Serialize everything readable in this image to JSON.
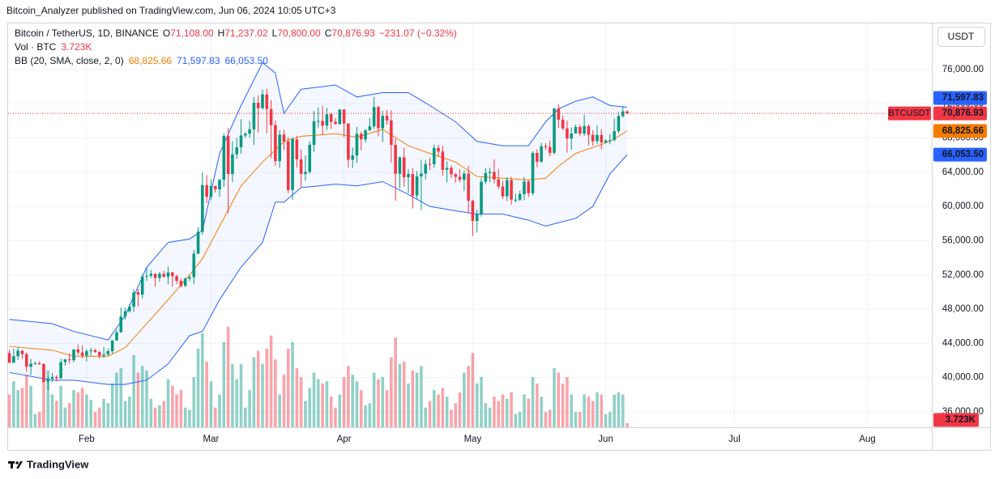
{
  "header": {
    "published": "Bitcoin_Analyzer published on TradingView.com, Jun 06, 2024 10:05 UTC+3"
  },
  "footer": {
    "brand": "TradingView"
  },
  "chart_data": {
    "type": "candlestick",
    "title": "Bitcoin / TetherUS, 1D, BINANCE",
    "ohlc_legend": [
      {
        "label": "O",
        "value": "71,108.00"
      },
      {
        "label": "H",
        "value": "71,237.02"
      },
      {
        "label": "L",
        "value": "70,800.00"
      },
      {
        "label": "C",
        "value": "70,876.93"
      }
    ],
    "change": "−231.07 (−0.32%)",
    "currency": "USDT",
    "symbol": "BTCUSDT",
    "last_price_label": "70,876.93",
    "up_color": "#089981",
    "down_color": "#f23645",
    "grid": true,
    "ylim": [
      34200,
      81480
    ],
    "yticks": [
      {
        "value": 36000,
        "label": "36,000.00"
      },
      {
        "value": 40000,
        "label": "40,000.00"
      },
      {
        "value": 44000,
        "label": "44,000.00"
      },
      {
        "value": 48000,
        "label": "48,000.00"
      },
      {
        "value": 52000,
        "label": "52,000.00"
      },
      {
        "value": 56000,
        "label": "56,000.00"
      },
      {
        "value": 60000,
        "label": "60,000.00"
      },
      {
        "value": 64000,
        "label": "64,000.00"
      },
      {
        "value": 68000,
        "label": "68,000.00"
      },
      {
        "value": 72000,
        "label": "72,000.00"
      },
      {
        "value": 76000,
        "label": "76,000.00"
      }
    ],
    "xlim": [
      -0.3,
      215
    ],
    "xticks": [
      {
        "value": 18,
        "label": "Feb"
      },
      {
        "value": 47,
        "label": "Mar"
      },
      {
        "value": 78,
        "label": "Apr"
      },
      {
        "value": 108,
        "label": "May"
      },
      {
        "value": 139,
        "label": "Jun"
      },
      {
        "value": 169,
        "label": "Jul"
      },
      {
        "value": 200,
        "label": "Aug"
      }
    ],
    "ohlc": [
      [
        42850,
        43250,
        41720,
        41730
      ],
      [
        41730,
        43400,
        41720,
        42500
      ],
      [
        42500,
        43570,
        42050,
        43150
      ],
      [
        43150,
        43200,
        42200,
        42740
      ],
      [
        42740,
        42930,
        40680,
        41260
      ],
      [
        41260,
        42190,
        40280,
        41620
      ],
      [
        41620,
        41870,
        41500,
        41660
      ],
      [
        41660,
        41880,
        41500,
        41580
      ],
      [
        41580,
        41690,
        39430,
        39500
      ],
      [
        39500,
        40130,
        38550,
        39850
      ],
      [
        39850,
        40550,
        39480,
        40080
      ],
      [
        40080,
        40280,
        39520,
        39930
      ],
      [
        39930,
        42210,
        39820,
        41800
      ],
      [
        41800,
        42200,
        41390,
        42120
      ],
      [
        42120,
        42840,
        41620,
        42030
      ],
      [
        42030,
        43300,
        41800,
        43300
      ],
      [
        43300,
        43880,
        42680,
        42940
      ],
      [
        42940,
        43740,
        42270,
        42580
      ],
      [
        42580,
        43290,
        41880,
        43080
      ],
      [
        43080,
        43490,
        42560,
        43180
      ],
      [
        43180,
        43380,
        42880,
        42990
      ],
      [
        42990,
        43120,
        42220,
        42580
      ],
      [
        42580,
        43550,
        42260,
        42700
      ],
      [
        42700,
        43400,
        42570,
        43090
      ],
      [
        43090,
        44400,
        42780,
        44340
      ],
      [
        44340,
        45610,
        44330,
        45290
      ],
      [
        45290,
        48200,
        45250,
        47130
      ],
      [
        47130,
        48170,
        46800,
        47750
      ],
      [
        47750,
        48590,
        47560,
        48290
      ],
      [
        48290,
        50330,
        47700,
        49960
      ],
      [
        49960,
        50370,
        48300,
        49700
      ],
      [
        49700,
        52040,
        49250,
        51800
      ],
      [
        51800,
        52820,
        51310,
        51900
      ],
      [
        51900,
        52570,
        51630,
        52130
      ],
      [
        52130,
        52190,
        50620,
        51650
      ],
      [
        51650,
        52350,
        51200,
        52130
      ],
      [
        52130,
        52490,
        51680,
        51780
      ],
      [
        51780,
        52990,
        50900,
        52280
      ],
      [
        52280,
        52370,
        50630,
        51850
      ],
      [
        51850,
        52050,
        50930,
        51300
      ],
      [
        51300,
        51550,
        50520,
        50730
      ],
      [
        50730,
        51690,
        50590,
        51570
      ],
      [
        51570,
        51950,
        51280,
        51730
      ],
      [
        51730,
        54910,
        50900,
        54480
      ],
      [
        54480,
        57580,
        54450,
        57040
      ],
      [
        57040,
        64000,
        56690,
        62500
      ],
      [
        62500,
        63680,
        60360,
        61130
      ],
      [
        61130,
        63150,
        60750,
        62390
      ],
      [
        62390,
        62430,
        61630,
        61990
      ],
      [
        61990,
        63230,
        61130,
        63110
      ],
      [
        63110,
        68530,
        62290,
        68240
      ],
      [
        68240,
        69170,
        59220,
        63800
      ],
      [
        63800,
        67630,
        62850,
        66100
      ],
      [
        66100,
        67990,
        65550,
        66920
      ],
      [
        66920,
        70200,
        66150,
        68300
      ],
      [
        68300,
        68670,
        68040,
        68500
      ],
      [
        68500,
        69980,
        68000,
        69020
      ],
      [
        69020,
        72800,
        67190,
        72120
      ],
      [
        72120,
        73000,
        68620,
        71480
      ],
      [
        71480,
        73650,
        71330,
        73100
      ],
      [
        73100,
        73780,
        68550,
        71390
      ],
      [
        71390,
        72420,
        65630,
        69500
      ],
      [
        69500,
        70050,
        64780,
        65300
      ],
      [
        65300,
        68920,
        64520,
        68390
      ],
      [
        68390,
        68960,
        66600,
        67610
      ],
      [
        67610,
        68130,
        61550,
        61930
      ],
      [
        61930,
        68100,
        60780,
        67850
      ],
      [
        67850,
        68240,
        64530,
        65500
      ],
      [
        65500,
        66650,
        62260,
        63800
      ],
      [
        63800,
        65980,
        63000,
        64040
      ],
      [
        64040,
        67620,
        63820,
        67200
      ],
      [
        67200,
        71150,
        66390,
        69960
      ],
      [
        69960,
        71560,
        69210,
        69990
      ],
      [
        69990,
        71770,
        68380,
        69450
      ],
      [
        69450,
        71550,
        68910,
        70780
      ],
      [
        70780,
        70910,
        69070,
        69890
      ],
      [
        69890,
        70350,
        69570,
        69640
      ],
      [
        69640,
        71370,
        69560,
        71330
      ],
      [
        71330,
        71340,
        68100,
        69700
      ],
      [
        69700,
        69710,
        64540,
        65460
      ],
      [
        65460,
        66910,
        64490,
        65960
      ],
      [
        65960,
        69290,
        65060,
        68490
      ],
      [
        68490,
        68720,
        66550,
        67840
      ],
      [
        67840,
        69000,
        67450,
        68900
      ],
      [
        68900,
        70330,
        68820,
        69360
      ],
      [
        69360,
        72800,
        69040,
        71620
      ],
      [
        71620,
        71760,
        68210,
        69140
      ],
      [
        69140,
        71170,
        67520,
        70590
      ],
      [
        70590,
        71280,
        69570,
        70060
      ],
      [
        70060,
        71230,
        65090,
        67190
      ],
      [
        67190,
        67930,
        60660,
        63820
      ],
      [
        63820,
        65840,
        62130,
        65740
      ],
      [
        65740,
        66870,
        62300,
        63420
      ],
      [
        63420,
        64360,
        61600,
        63790
      ],
      [
        63790,
        64480,
        59770,
        61280
      ],
      [
        61280,
        64130,
        60830,
        63510
      ],
      [
        63510,
        65450,
        59600,
        63840
      ],
      [
        63840,
        65420,
        63180,
        64960
      ],
      [
        64960,
        65700,
        64240,
        64940
      ],
      [
        64940,
        67230,
        64500,
        66840
      ],
      [
        66840,
        67210,
        65860,
        66410
      ],
      [
        66410,
        67080,
        63600,
        64290
      ],
      [
        64290,
        65300,
        62800,
        64500
      ],
      [
        64500,
        64800,
        63320,
        63770
      ],
      [
        63770,
        63920,
        62790,
        63460
      ],
      [
        63460,
        64360,
        62830,
        63120
      ],
      [
        63120,
        64230,
        61800,
        63840
      ],
      [
        63840,
        64740,
        59190,
        60670
      ],
      [
        60670,
        60780,
        56550,
        58300
      ],
      [
        58300,
        59600,
        56940,
        59100
      ],
      [
        59100,
        63330,
        58810,
        62890
      ],
      [
        62890,
        64490,
        62590,
        63890
      ],
      [
        63890,
        64530,
        62850,
        64030
      ],
      [
        64030,
        65500,
        62700,
        63160
      ],
      [
        63160,
        64400,
        62030,
        62330
      ],
      [
        62330,
        62990,
        60870,
        61190
      ],
      [
        61190,
        63420,
        60650,
        63070
      ],
      [
        63070,
        63470,
        60190,
        60790
      ],
      [
        60790,
        61490,
        60490,
        60790
      ],
      [
        60790,
        61830,
        60630,
        61450
      ],
      [
        61450,
        63450,
        60750,
        62920
      ],
      [
        62920,
        63100,
        61110,
        61550
      ],
      [
        61550,
        66450,
        61330,
        66250
      ],
      [
        66250,
        66700,
        64600,
        65230
      ],
      [
        65230,
        67440,
        65110,
        67050
      ],
      [
        67050,
        67400,
        66600,
        66940
      ],
      [
        66940,
        67700,
        65860,
        66270
      ],
      [
        66270,
        71500,
        66060,
        71450
      ],
      [
        71450,
        71950,
        69160,
        70140
      ],
      [
        70140,
        70620,
        68900,
        69120
      ],
      [
        69120,
        70040,
        66310,
        67930
      ],
      [
        67930,
        69220,
        66630,
        68530
      ],
      [
        68530,
        69570,
        68510,
        69290
      ],
      [
        69290,
        69560,
        68210,
        68510
      ],
      [
        68510,
        70690,
        68240,
        69390
      ],
      [
        69390,
        69590,
        67120,
        68370
      ],
      [
        68370,
        68900,
        67110,
        67630
      ],
      [
        67630,
        69500,
        67300,
        68350
      ],
      [
        68350,
        69020,
        66670,
        67490
      ],
      [
        67490,
        67860,
        67380,
        67710
      ],
      [
        67710,
        68460,
        67260,
        67760
      ],
      [
        67760,
        70280,
        67620,
        68800
      ],
      [
        68800,
        71060,
        68550,
        70570
      ],
      [
        70570,
        71760,
        70390,
        71108
      ],
      [
        71108,
        71237.02,
        70800,
        70876.93
      ]
    ],
    "volume": {
      "name": "Vol · BTC",
      "last_label": "3.723K",
      "vlim": [
        0,
        100
      ],
      "values": [
        30,
        42,
        34,
        36,
        48,
        38,
        12,
        14,
        44,
        52,
        30,
        24,
        38,
        18,
        22,
        34,
        32,
        36,
        30,
        25,
        14,
        18,
        26,
        22,
        40,
        50,
        54,
        24,
        28,
        66,
        50,
        56,
        52,
        26,
        18,
        20,
        24,
        44,
        38,
        30,
        34,
        18,
        16,
        46,
        72,
        86,
        60,
        42,
        18,
        30,
        78,
        92,
        58,
        44,
        58,
        18,
        34,
        64,
        70,
        58,
        72,
        84,
        62,
        30,
        48,
        72,
        78,
        54,
        46,
        24,
        36,
        50,
        44,
        40,
        42,
        28,
        18,
        30,
        46,
        56,
        48,
        42,
        34,
        20,
        22,
        50,
        44,
        46,
        34,
        64,
        82,
        58,
        60,
        40,
        52,
        50,
        56,
        18,
        24,
        34,
        30,
        36,
        28,
        16,
        22,
        32,
        50,
        56,
        68,
        40,
        46,
        22,
        18,
        28,
        24,
        30,
        26,
        32,
        12,
        14,
        30,
        26,
        46,
        40,
        28,
        14,
        16,
        54,
        50,
        40,
        46,
        30,
        14,
        14,
        30,
        28,
        24,
        32,
        30,
        12,
        14,
        30,
        32,
        30,
        3.723
      ]
    },
    "bb": {
      "name": "BB (20, SMA, close, 2, 0)",
      "basis_color": "#f57c00",
      "band_color": "#2962ff",
      "last_labels": {
        "basis": "68,825.66",
        "upper": "71,597.83",
        "lower": "66,053.50"
      },
      "x": [
        0,
        10,
        15,
        23,
        27,
        32,
        37,
        42,
        45,
        49,
        54,
        59,
        62,
        64,
        68,
        76,
        81,
        87,
        93,
        98,
        104,
        109,
        115,
        121,
        125,
        128,
        132,
        136,
        140,
        144
      ],
      "upper": [
        46800,
        46300,
        45400,
        44400,
        47250,
        52900,
        55800,
        56200,
        57200,
        66200,
        71800,
        76800,
        75600,
        70900,
        73700,
        74200,
        72800,
        73300,
        73300,
        71800,
        69900,
        67600,
        67100,
        67100,
        69900,
        71400,
        72300,
        72800,
        71800,
        71597.83
      ],
      "basis": [
        43650,
        43200,
        42500,
        42500,
        43500,
        46300,
        49100,
        52000,
        53900,
        57700,
        62400,
        65200,
        66600,
        67600,
        68200,
        68500,
        68100,
        69000,
        67100,
        66200,
        65200,
        63500,
        63300,
        63100,
        63300,
        64700,
        66200,
        66900,
        67600,
        68825.66
      ],
      "lower": [
        40600,
        39700,
        39700,
        39200,
        39200,
        39700,
        41600,
        44900,
        45400,
        49100,
        52900,
        55800,
        60500,
        60500,
        62200,
        62600,
        62400,
        62900,
        61400,
        60000,
        59500,
        59100,
        59100,
        58400,
        57700,
        58100,
        58600,
        60000,
        63800,
        66053.5
      ]
    }
  }
}
